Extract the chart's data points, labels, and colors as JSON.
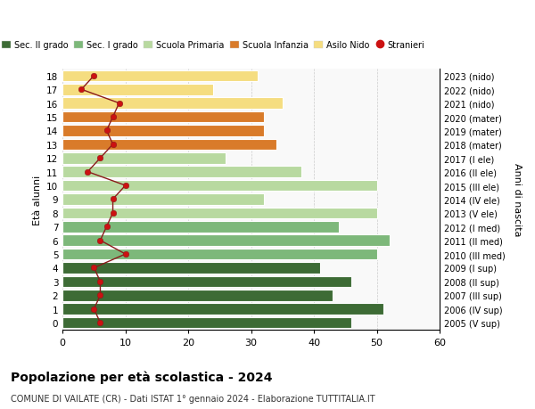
{
  "ages": [
    18,
    17,
    16,
    15,
    14,
    13,
    12,
    11,
    10,
    9,
    8,
    7,
    6,
    5,
    4,
    3,
    2,
    1,
    0
  ],
  "right_labels": [
    "2005 (V sup)",
    "2006 (IV sup)",
    "2007 (III sup)",
    "2008 (II sup)",
    "2009 (I sup)",
    "2010 (III med)",
    "2011 (II med)",
    "2012 (I med)",
    "2013 (V ele)",
    "2014 (IV ele)",
    "2015 (III ele)",
    "2016 (II ele)",
    "2017 (I ele)",
    "2018 (mater)",
    "2019 (mater)",
    "2020 (mater)",
    "2021 (nido)",
    "2022 (nido)",
    "2023 (nido)"
  ],
  "bar_values": [
    46,
    51,
    43,
    46,
    41,
    50,
    52,
    44,
    50,
    32,
    50,
    38,
    26,
    34,
    32,
    32,
    35,
    24,
    31
  ],
  "bar_colors": [
    "#3d6b35",
    "#3d6b35",
    "#3d6b35",
    "#3d6b35",
    "#3d6b35",
    "#7db87a",
    "#7db87a",
    "#7db87a",
    "#b8d9a0",
    "#b8d9a0",
    "#b8d9a0",
    "#b8d9a0",
    "#b8d9a0",
    "#d97b2a",
    "#d97b2a",
    "#d97b2a",
    "#f5dd80",
    "#f5dd80",
    "#f5dd80"
  ],
  "stranieri_values": [
    6,
    5,
    6,
    6,
    5,
    10,
    6,
    7,
    8,
    8,
    10,
    4,
    6,
    8,
    7,
    8,
    9,
    3,
    5
  ],
  "legend_labels": [
    "Sec. II grado",
    "Sec. I grado",
    "Scuola Primaria",
    "Scuola Infanzia",
    "Asilo Nido",
    "Stranieri"
  ],
  "legend_colors": [
    "#3d6b35",
    "#7db87a",
    "#b8d9a0",
    "#d97b2a",
    "#f5dd80",
    "#cc1111"
  ],
  "title": "Popolazione per età scolastica - 2024",
  "subtitle": "COMUNE DI VAILATE (CR) - Dati ISTAT 1° gennaio 2024 - Elaborazione TUTTITALIA.IT",
  "ylabel_left": "Età alunni",
  "ylabel_right": "Anni di nascita",
  "xlim": [
    0,
    60
  ],
  "xticks": [
    0,
    10,
    20,
    30,
    40,
    50,
    60
  ]
}
